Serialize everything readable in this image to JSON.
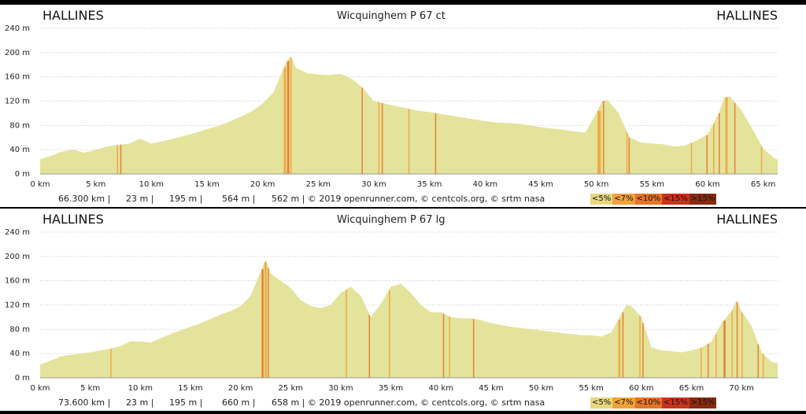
{
  "chart_data": [
    {
      "type": "area",
      "title": "Wicquinghem P 67 ct",
      "start_place": "HALLINES",
      "end_place": "HALLINES",
      "xlim": [
        0,
        66.3
      ],
      "ylim": [
        0,
        240
      ],
      "y_ticks": [
        "0 m",
        "40 m",
        "80 m",
        "120 m",
        "160 m",
        "200 m",
        "240 m"
      ],
      "y_tick_values": [
        0,
        40,
        80,
        120,
        160,
        200,
        240
      ],
      "x_ticks": [
        "0 km",
        "5 km",
        "10 km",
        "15 km",
        "20 km",
        "25 km",
        "30 km",
        "35 km",
        "40 km",
        "45 km",
        "50 km",
        "55 km",
        "60 km",
        "65 km"
      ],
      "x_tick_values": [
        0,
        5,
        10,
        15,
        20,
        25,
        30,
        35,
        40,
        45,
        50,
        55,
        60,
        65
      ],
      "grid": "horizontal dotted",
      "stats": [
        "66.300 km |",
        "23 m |",
        "195 m |",
        "564 m |",
        "562 m | © 2019 openrunner.com, © centcols.org, © srtm nasa"
      ],
      "grade_legend": [
        "<5%",
        "<7%",
        "<10%",
        "<15%",
        ">15%"
      ],
      "grade_colors": [
        "#e8d77e",
        "#f2a23a",
        "#e6742a",
        "#c8341c",
        "#8a2a10"
      ],
      "fill_color": "#e3e39b",
      "elevation_km": [
        0,
        1,
        2,
        3,
        4,
        5,
        6,
        7,
        8,
        9,
        10,
        11,
        12,
        13,
        14,
        15,
        16,
        17,
        18,
        19,
        20,
        21,
        22,
        22.5,
        23,
        24,
        25,
        26,
        27,
        28,
        29,
        30,
        31,
        32,
        33,
        34,
        35,
        36,
        37,
        38,
        39,
        40,
        41,
        42,
        43,
        44,
        45,
        46,
        47,
        48,
        49,
        50,
        50.5,
        51,
        52,
        53,
        54,
        55,
        56,
        57,
        58,
        59,
        60,
        61,
        61.5,
        62,
        63,
        64,
        65,
        66,
        66.3
      ],
      "elevation_m": [
        24,
        30,
        37,
        40,
        35,
        40,
        45,
        48,
        50,
        58,
        50,
        54,
        58,
        63,
        68,
        74,
        79,
        86,
        94,
        103,
        116,
        135,
        180,
        195,
        175,
        166,
        164,
        163,
        165,
        157,
        142,
        120,
        116,
        112,
        108,
        104,
        102,
        99,
        96,
        93,
        90,
        87,
        85,
        84,
        83,
        80,
        77,
        75,
        73,
        70,
        68,
        100,
        120,
        122,
        100,
        60,
        52,
        50,
        49,
        45,
        47,
        55,
        65,
        100,
        126,
        128,
        106,
        75,
        42,
        26,
        24
      ],
      "steep_segments_km": [
        [
          6.9,
          7.0
        ],
        [
          7.2,
          7.3
        ],
        [
          21.9,
          22.1
        ],
        [
          22.2,
          22.4
        ],
        [
          22.5,
          22.6
        ],
        [
          28.9,
          29.0
        ],
        [
          30.4,
          30.5
        ],
        [
          30.7,
          30.8
        ],
        [
          33.1,
          33.2
        ],
        [
          35.5,
          35.6
        ],
        [
          50.1,
          50.4
        ],
        [
          50.6,
          50.7
        ],
        [
          52.7,
          52.8
        ],
        [
          52.9,
          53.0
        ],
        [
          58.5,
          58.6
        ],
        [
          59.9,
          60.0
        ],
        [
          60.5,
          60.6
        ],
        [
          61.0,
          61.1
        ],
        [
          61.6,
          61.8
        ],
        [
          62.4,
          62.5
        ],
        [
          64.8,
          64.9
        ]
      ]
    },
    {
      "type": "area",
      "title": "Wicquinghem P 67 lg",
      "start_place": "HALLINES",
      "end_place": "HALLINES",
      "xlim": [
        0,
        73.6
      ],
      "ylim": [
        0,
        240
      ],
      "y_ticks": [
        "0 m",
        "40 m",
        "80 m",
        "120 m",
        "160 m",
        "200 m",
        "240 m"
      ],
      "y_tick_values": [
        0,
        40,
        80,
        120,
        160,
        200,
        240
      ],
      "x_ticks": [
        "0 km",
        "5 km",
        "10 km",
        "15 km",
        "20 km",
        "25 km",
        "30 km",
        "35 km",
        "40 km",
        "45 km",
        "50 km",
        "55 km",
        "60 km",
        "65 km",
        "70 km"
      ],
      "x_tick_values": [
        0,
        5,
        10,
        15,
        20,
        25,
        30,
        35,
        40,
        45,
        50,
        55,
        60,
        65,
        70
      ],
      "grid": "horizontal dotted",
      "stats": [
        "73.600 km |",
        "23 m |",
        "195 m |",
        "660 m |",
        "658 m | © 2019 openrunner.com, © centcols.org, © srtm nasa"
      ],
      "grade_legend": [
        "<5%",
        "<7%",
        "<10%",
        "<15%",
        ">15%"
      ],
      "grade_colors": [
        "#e8d77e",
        "#f2a23a",
        "#e6742a",
        "#c8341c",
        "#8a2a10"
      ],
      "fill_color": "#e3e39b",
      "elevation_km": [
        0,
        1,
        2,
        3,
        4,
        5,
        6,
        7,
        8,
        9,
        10,
        11,
        12,
        13,
        14,
        15,
        16,
        17,
        18,
        19,
        20,
        21,
        22,
        22.5,
        23,
        24,
        25,
        26,
        27,
        28,
        29,
        30,
        31,
        32,
        33,
        34,
        35,
        36,
        37,
        38,
        39,
        40,
        41,
        42,
        43,
        44,
        45,
        46,
        47,
        48,
        49,
        50,
        51,
        52,
        53,
        54,
        55,
        56,
        57,
        58,
        58.5,
        59,
        60,
        61,
        62,
        63,
        64,
        65,
        66,
        67,
        68,
        69,
        69.5,
        70,
        71,
        72,
        73,
        73.6
      ],
      "elevation_m": [
        22,
        28,
        35,
        38,
        40,
        42,
        45,
        48,
        52,
        60,
        60,
        58,
        65,
        72,
        78,
        84,
        90,
        97,
        104,
        110,
        118,
        135,
        175,
        195,
        172,
        160,
        148,
        128,
        118,
        115,
        120,
        140,
        150,
        135,
        100,
        122,
        150,
        155,
        140,
        120,
        108,
        108,
        100,
        98,
        98,
        95,
        90,
        87,
        84,
        82,
        80,
        78,
        76,
        74,
        72,
        70,
        70,
        68,
        75,
        105,
        120,
        118,
        100,
        50,
        45,
        44,
        42,
        45,
        50,
        60,
        90,
        110,
        128,
        110,
        85,
        42,
        26,
        24
      ],
      "steep_segments_km": [
        [
          7.0,
          7.1
        ],
        [
          22.1,
          22.3
        ],
        [
          22.4,
          22.6
        ],
        [
          22.7,
          22.8
        ],
        [
          30.5,
          30.6
        ],
        [
          32.8,
          32.9
        ],
        [
          34.8,
          34.9
        ],
        [
          40.2,
          40.3
        ],
        [
          40.8,
          40.9
        ],
        [
          43.2,
          43.3
        ],
        [
          57.7,
          57.9
        ],
        [
          58.1,
          58.2
        ],
        [
          59.8,
          59.9
        ],
        [
          60.1,
          60.2
        ],
        [
          65.9,
          66.0
        ],
        [
          66.6,
          66.7
        ],
        [
          67.4,
          67.5
        ],
        [
          68.2,
          68.4
        ],
        [
          69.0,
          69.1
        ],
        [
          69.5,
          69.6
        ],
        [
          70.0,
          70.1
        ],
        [
          71.6,
          71.7
        ],
        [
          72.1,
          72.2
        ]
      ]
    }
  ]
}
